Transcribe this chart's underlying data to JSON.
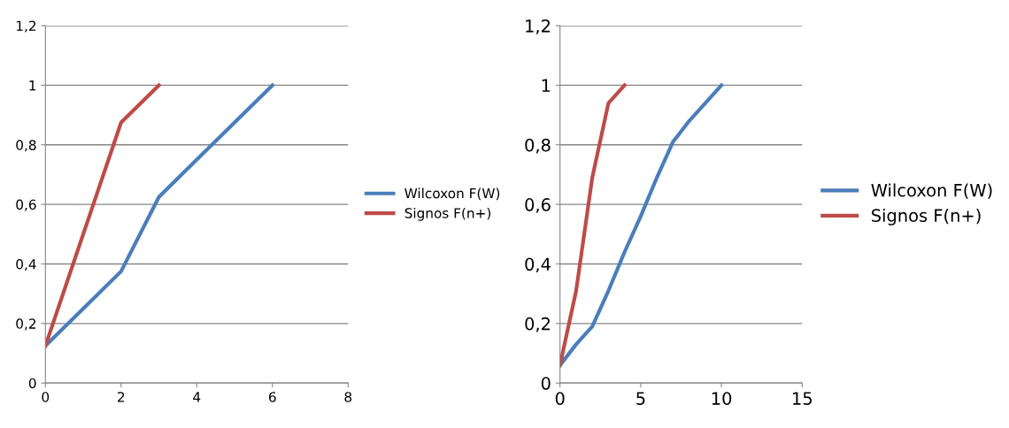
{
  "chart_data": [
    {
      "type": "line",
      "x": [
        0,
        1,
        2,
        3,
        4,
        5,
        6
      ],
      "series": [
        {
          "name": "Wilcoxon F(W)",
          "color": "#4a7ebb",
          "values": [
            0.125,
            0.25,
            0.375,
            0.625,
            0.75,
            0.875,
            1
          ]
        },
        {
          "name": "Signos F(n+)",
          "color": "#be4b48",
          "x": [
            0,
            1,
            2,
            3
          ],
          "values": [
            0.125,
            0.5,
            0.875,
            1
          ]
        }
      ],
      "xlim": [
        0,
        8
      ],
      "xticks": [
        0,
        2,
        4,
        6,
        8
      ],
      "ylim": [
        0,
        1.2
      ],
      "yticks": [
        0,
        {
          "value": 0.2,
          "label": "0,2"
        },
        {
          "value": 0.4,
          "label": "0,4"
        },
        {
          "value": 0.6,
          "label": "0,6"
        },
        {
          "value": 0.8,
          "label": "0,8"
        },
        1,
        {
          "value": 1.2,
          "label": "1,2"
        }
      ],
      "grid": "y",
      "legend": "right",
      "marker": "none",
      "line_style": "solid"
    },
    {
      "type": "line",
      "x": [
        0,
        1,
        2,
        3,
        4,
        5,
        6,
        7,
        8,
        9,
        10
      ],
      "series": [
        {
          "name": "Wilcoxon F(W)",
          "color": "#4a7ebb",
          "values": [
            0.06,
            0.13,
            0.19,
            0.31,
            0.44,
            0.56,
            0.69,
            0.81,
            0.88,
            0.94,
            1
          ]
        },
        {
          "name": "Signos F(n+)",
          "color": "#be4b48",
          "x": [
            0,
            1,
            2,
            3,
            4
          ],
          "values": [
            0.06,
            0.31,
            0.69,
            0.94,
            1
          ]
        }
      ],
      "xlim": [
        0,
        15
      ],
      "xticks": [
        0,
        5,
        10,
        15
      ],
      "ylim": [
        0,
        1.2
      ],
      "yticks": [
        0,
        {
          "value": 0.2,
          "label": "0,2"
        },
        {
          "value": 0.4,
          "label": "0,4"
        },
        {
          "value": 0.6,
          "label": "0,6"
        },
        {
          "value": 0.8,
          "label": "0,8"
        },
        1,
        {
          "value": 1.2,
          "label": "1,2"
        }
      ],
      "grid": "y",
      "legend": "right",
      "marker": "none",
      "line_style": "solid"
    }
  ]
}
